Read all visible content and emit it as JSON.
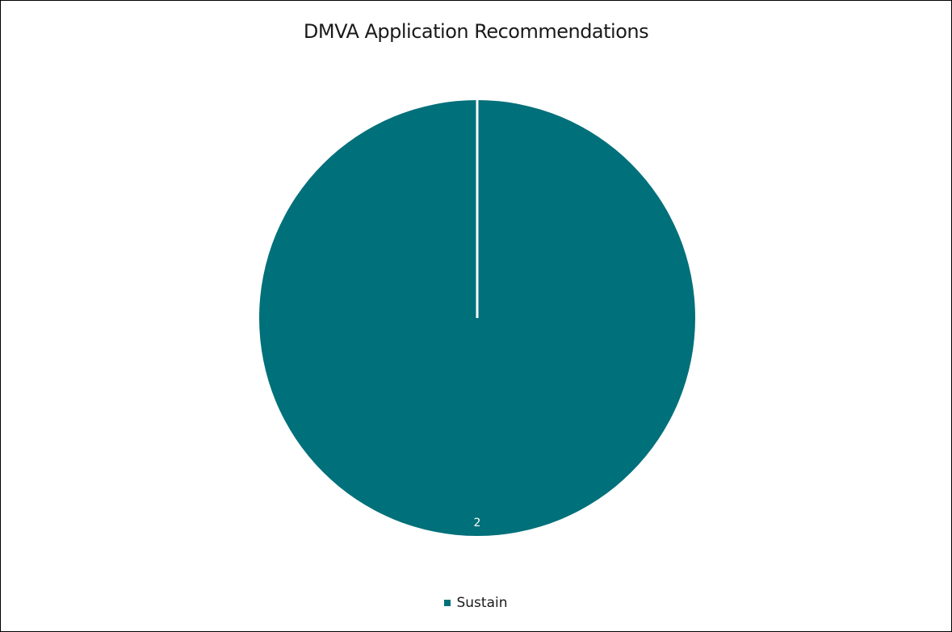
{
  "chart_data": {
    "type": "pie",
    "title": "DMVA Application Recommendations",
    "categories": [
      "Sustain"
    ],
    "values": [
      2
    ],
    "data_labels": [
      "2"
    ],
    "colors": [
      "#00707A"
    ],
    "legend_position": "bottom",
    "slice_separator_color": "#ffffff"
  }
}
